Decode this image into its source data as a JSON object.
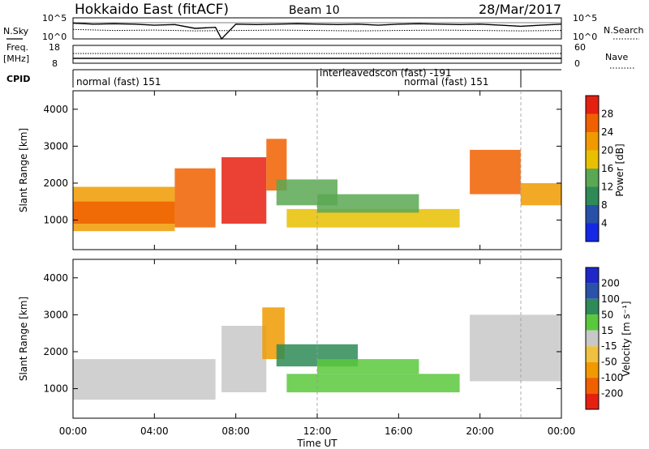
{
  "header": {
    "station": "Hokkaido East (fitACF)",
    "beam": "Beam 10",
    "date": "28/Mar/2017"
  },
  "strip_labels": {
    "nsky": "N.Sky",
    "nsky_top": "10^5",
    "nsky_bottom": "10^0",
    "nsearch": "N.Search",
    "nsearch_top": "10^5",
    "nsearch_bottom": "10^0",
    "freq_label_1": "Freq.",
    "freq_label_2": "[MHz]",
    "freq_top": "18",
    "freq_bottom": "8",
    "nave": "Nave",
    "nave_top": "60",
    "nave_bottom": "0",
    "cpid": "CPID"
  },
  "cpid_segments": [
    {
      "start_hour": 0,
      "end_hour": 12,
      "label": "normal (fast) 151"
    },
    {
      "start_hour": 12,
      "end_hour": 22,
      "label": "interleavedscon (fast) -191"
    },
    {
      "start_hour": 12,
      "end_hour": 22,
      "label": "normal (fast) 151"
    }
  ],
  "axes": {
    "x_label": "Time UT",
    "x_ticks": [
      "00:00",
      "04:00",
      "08:00",
      "12:00",
      "16:00",
      "20:00",
      "00:00"
    ],
    "y_label": "Slant Range [km]",
    "y_ticks": [
      "1000",
      "2000",
      "3000",
      "4000"
    ]
  },
  "colorbars": {
    "power": {
      "label": "Power [dB]",
      "ticks": [
        "4",
        "8",
        "12",
        "16",
        "20",
        "24",
        "28"
      ],
      "colors": [
        "#1428e6",
        "#2850a8",
        "#2e8b57",
        "#5aa854",
        "#e8c000",
        "#f09a00",
        "#f06000",
        "#e62010"
      ]
    },
    "velocity": {
      "label": "Velocity [m s⁻¹]",
      "ticks": [
        "200",
        "100",
        "50",
        "15",
        "-15",
        "-50",
        "-100",
        "-200"
      ],
      "colors": [
        "#1e28c8",
        "#2a52a8",
        "#2e8b57",
        "#5ac83c",
        "#c8c8c8",
        "#f0c040",
        "#f09a00",
        "#f06000",
        "#e62010"
      ]
    }
  },
  "chart_data": [
    {
      "type": "line",
      "title": "N.Sky / N.Search",
      "x_range_hours": [
        0,
        24
      ],
      "series": [
        {
          "name": "N.Sky",
          "x": [
            0,
            1,
            2,
            3,
            4,
            5,
            6,
            7,
            7.3,
            8,
            9,
            10,
            11,
            12,
            13,
            14,
            15,
            16,
            17,
            18,
            19,
            20,
            21,
            22,
            23,
            24
          ],
          "y_level": [
            0.25,
            0.3,
            0.28,
            0.3,
            0.35,
            0.32,
            0.5,
            0.45,
            1.0,
            0.3,
            0.32,
            0.3,
            0.28,
            0.3,
            0.32,
            0.3,
            0.35,
            0.3,
            0.28,
            0.3,
            0.32,
            0.3,
            0.35,
            0.4,
            0.35,
            0.3
          ]
        },
        {
          "name": "N.Search",
          "x": [
            0,
            2,
            4,
            6,
            8,
            10,
            12,
            14,
            16,
            18,
            20,
            22,
            24
          ],
          "y_level": [
            0.55,
            0.6,
            0.58,
            0.62,
            0.6,
            0.58,
            0.6,
            0.62,
            0.6,
            0.58,
            0.6,
            0.62,
            0.6
          ]
        }
      ]
    },
    {
      "type": "line",
      "title": "Freq / Nave",
      "x_range_hours": [
        0,
        24
      ],
      "series": [
        {
          "name": "Freq.",
          "x": [
            0,
            24
          ],
          "y": [
            11,
            11
          ]
        },
        {
          "name": "Nave",
          "x": [
            0,
            24
          ],
          "y": [
            16,
            16
          ]
        }
      ],
      "ylim_freq": [
        8,
        18
      ],
      "ylim_nave": [
        0,
        60
      ]
    },
    {
      "type": "heatmap",
      "title": "Power",
      "xlabel": "Time UT",
      "ylabel": "Slant Range [km]",
      "x_range_hours": [
        0,
        24
      ],
      "ylim": [
        200,
        4500
      ],
      "value_units": "dB",
      "regions": [
        {
          "t0": 0.0,
          "t1": 5.0,
          "r0": 700,
          "r1": 1900,
          "value": 22
        },
        {
          "t0": 0.0,
          "t1": 5.0,
          "r0": 900,
          "r1": 1500,
          "value": 27
        },
        {
          "t0": 5.0,
          "t1": 7.0,
          "r0": 800,
          "r1": 2400,
          "value": 24
        },
        {
          "t0": 7.3,
          "t1": 9.5,
          "r0": 900,
          "r1": 2700,
          "value": 28
        },
        {
          "t0": 9.5,
          "t1": 10.5,
          "r0": 1800,
          "r1": 3200,
          "value": 26
        },
        {
          "t0": 10.0,
          "t1": 13.0,
          "r0": 1400,
          "r1": 2100,
          "value": 12
        },
        {
          "t0": 10.5,
          "t1": 19.0,
          "r0": 800,
          "r1": 1300,
          "value": 18
        },
        {
          "t0": 12.0,
          "t1": 17.0,
          "r0": 1200,
          "r1": 1700,
          "value": 12
        },
        {
          "t0": 19.5,
          "t1": 22.0,
          "r0": 1700,
          "r1": 2900,
          "value": 27
        },
        {
          "t0": 22.0,
          "t1": 24.0,
          "r0": 1400,
          "r1": 2000,
          "value": 22
        }
      ]
    },
    {
      "type": "heatmap",
      "title": "Velocity",
      "xlabel": "Time UT",
      "ylabel": "Slant Range [km]",
      "x_range_hours": [
        0,
        24
      ],
      "ylim": [
        200,
        4500
      ],
      "value_units": "m s-1",
      "regions": [
        {
          "t0": 0.0,
          "t1": 7.0,
          "r0": 700,
          "r1": 1800,
          "value": 0
        },
        {
          "t0": 7.3,
          "t1": 9.5,
          "r0": 900,
          "r1": 2700,
          "value": 0
        },
        {
          "t0": 9.3,
          "t1": 10.4,
          "r0": 1800,
          "r1": 3200,
          "value": -60
        },
        {
          "t0": 10.0,
          "t1": 14.0,
          "r0": 1600,
          "r1": 2200,
          "value": 50
        },
        {
          "t0": 10.5,
          "t1": 19.0,
          "r0": 900,
          "r1": 1400,
          "value": 20
        },
        {
          "t0": 12.0,
          "t1": 17.0,
          "r0": 1400,
          "r1": 1800,
          "value": 40
        },
        {
          "t0": 19.5,
          "t1": 24.0,
          "r0": 1200,
          "r1": 3000,
          "value": 0
        }
      ]
    }
  ]
}
